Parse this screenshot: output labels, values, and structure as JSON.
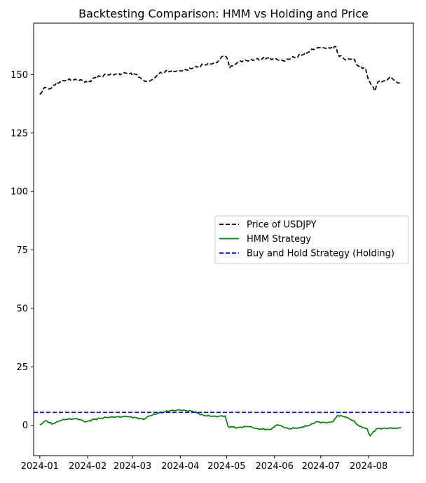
{
  "chart_data": {
    "type": "line",
    "title": "Backtesting Comparison: HMM vs Holding and Price",
    "xlabel": "",
    "ylabel": "",
    "x_axis": {
      "type": "date",
      "range": [
        "2023-12-28",
        "2024-08-30"
      ],
      "ticks": [
        {
          "date": "2024-01-01",
          "label": "2024-01"
        },
        {
          "date": "2024-02-01",
          "label": "2024-02"
        },
        {
          "date": "2024-03-01",
          "label": "2024-03"
        },
        {
          "date": "2024-04-01",
          "label": "2024-04"
        },
        {
          "date": "2024-05-01",
          "label": "2024-05"
        },
        {
          "date": "2024-06-01",
          "label": "2024-06"
        },
        {
          "date": "2024-07-01",
          "label": "2024-07"
        },
        {
          "date": "2024-08-01",
          "label": "2024-08"
        }
      ]
    },
    "ylim": [
      -13,
      172
    ],
    "yticks": [
      0,
      25,
      50,
      75,
      100,
      125,
      150
    ],
    "grid": false,
    "legend_position": "center-right",
    "series": [
      {
        "name": "Price of USDJPY",
        "style": "dashed",
        "color": "#000000",
        "points": [
          [
            "2024-01-01",
            141.5
          ],
          [
            "2024-01-04",
            144.5
          ],
          [
            "2024-01-08",
            144.0
          ],
          [
            "2024-01-10",
            145.5
          ],
          [
            "2024-01-16",
            147.5
          ],
          [
            "2024-01-22",
            147.8
          ],
          [
            "2024-01-29",
            147.5
          ],
          [
            "2024-02-01",
            146.5
          ],
          [
            "2024-02-05",
            148.5
          ],
          [
            "2024-02-13",
            150.0
          ],
          [
            "2024-02-19",
            150.2
          ],
          [
            "2024-02-26",
            150.5
          ],
          [
            "2024-03-04",
            150.0
          ],
          [
            "2024-03-07",
            148.0
          ],
          [
            "2024-03-11",
            146.9
          ],
          [
            "2024-03-15",
            148.5
          ],
          [
            "2024-03-19",
            151.0
          ],
          [
            "2024-03-25",
            151.4
          ],
          [
            "2024-04-01",
            151.6
          ],
          [
            "2024-04-10",
            152.8
          ],
          [
            "2024-04-16",
            154.2
          ],
          [
            "2024-04-24",
            155.0
          ],
          [
            "2024-04-29",
            158.0
          ],
          [
            "2024-05-01",
            157.5
          ],
          [
            "2024-05-03",
            153.0
          ],
          [
            "2024-05-07",
            154.5
          ],
          [
            "2024-05-10",
            155.8
          ],
          [
            "2024-05-20",
            156.4
          ],
          [
            "2024-05-28",
            157.1
          ],
          [
            "2024-06-03",
            156.3
          ],
          [
            "2024-06-07",
            155.8
          ],
          [
            "2024-06-12",
            157.0
          ],
          [
            "2024-06-20",
            158.6
          ],
          [
            "2024-06-26",
            160.8
          ],
          [
            "2024-07-01",
            161.6
          ],
          [
            "2024-07-05",
            161.0
          ],
          [
            "2024-07-11",
            161.8
          ],
          [
            "2024-07-12",
            158.8
          ],
          [
            "2024-07-17",
            156.2
          ],
          [
            "2024-07-22",
            157.0
          ],
          [
            "2024-07-25",
            153.7
          ],
          [
            "2024-07-30",
            152.6
          ],
          [
            "2024-07-31",
            149.8
          ],
          [
            "2024-08-02",
            146.5
          ],
          [
            "2024-08-05",
            143.0
          ],
          [
            "2024-08-07",
            146.8
          ],
          [
            "2024-08-12",
            147.2
          ],
          [
            "2024-08-15",
            149.1
          ],
          [
            "2024-08-19",
            146.9
          ],
          [
            "2024-08-22",
            146.2
          ]
        ]
      },
      {
        "name": "HMM Strategy",
        "style": "solid",
        "color": "#008000",
        "points": [
          [
            "2024-01-01",
            0.2
          ],
          [
            "2024-01-05",
            2.0
          ],
          [
            "2024-01-09",
            0.5
          ],
          [
            "2024-01-12",
            1.5
          ],
          [
            "2024-01-16",
            2.5
          ],
          [
            "2024-01-25",
            2.8
          ],
          [
            "2024-01-31",
            1.5
          ],
          [
            "2024-02-05",
            2.5
          ],
          [
            "2024-02-13",
            3.4
          ],
          [
            "2024-02-26",
            3.7
          ],
          [
            "2024-03-04",
            3.2
          ],
          [
            "2024-03-08",
            2.5
          ],
          [
            "2024-03-12",
            4.0
          ],
          [
            "2024-03-18",
            5.2
          ],
          [
            "2024-03-25",
            6.2
          ],
          [
            "2024-04-01",
            6.5
          ],
          [
            "2024-04-09",
            6.0
          ],
          [
            "2024-04-16",
            4.2
          ],
          [
            "2024-04-24",
            3.8
          ],
          [
            "2024-04-30",
            4.0
          ],
          [
            "2024-05-02",
            -0.5
          ],
          [
            "2024-05-08",
            -1.0
          ],
          [
            "2024-05-15",
            -0.5
          ],
          [
            "2024-05-21",
            -1.5
          ],
          [
            "2024-05-29",
            -1.8
          ],
          [
            "2024-06-03",
            0.2
          ],
          [
            "2024-06-10",
            -1.5
          ],
          [
            "2024-06-17",
            -1.0
          ],
          [
            "2024-06-24",
            0.0
          ],
          [
            "2024-06-28",
            1.5
          ],
          [
            "2024-07-05",
            1.0
          ],
          [
            "2024-07-09",
            1.5
          ],
          [
            "2024-07-12",
            4.3
          ],
          [
            "2024-07-17",
            3.5
          ],
          [
            "2024-07-22",
            2.0
          ],
          [
            "2024-07-26",
            -0.5
          ],
          [
            "2024-07-31",
            -1.5
          ],
          [
            "2024-08-02",
            -4.5
          ],
          [
            "2024-08-06",
            -1.5
          ],
          [
            "2024-08-12",
            -1.3
          ],
          [
            "2024-08-19",
            -1.2
          ],
          [
            "2024-08-22",
            -1.0
          ]
        ]
      },
      {
        "name": "Buy and Hold Strategy (Holding)",
        "style": "dashed",
        "color": "#0000ff",
        "hline": 5.5
      }
    ]
  }
}
